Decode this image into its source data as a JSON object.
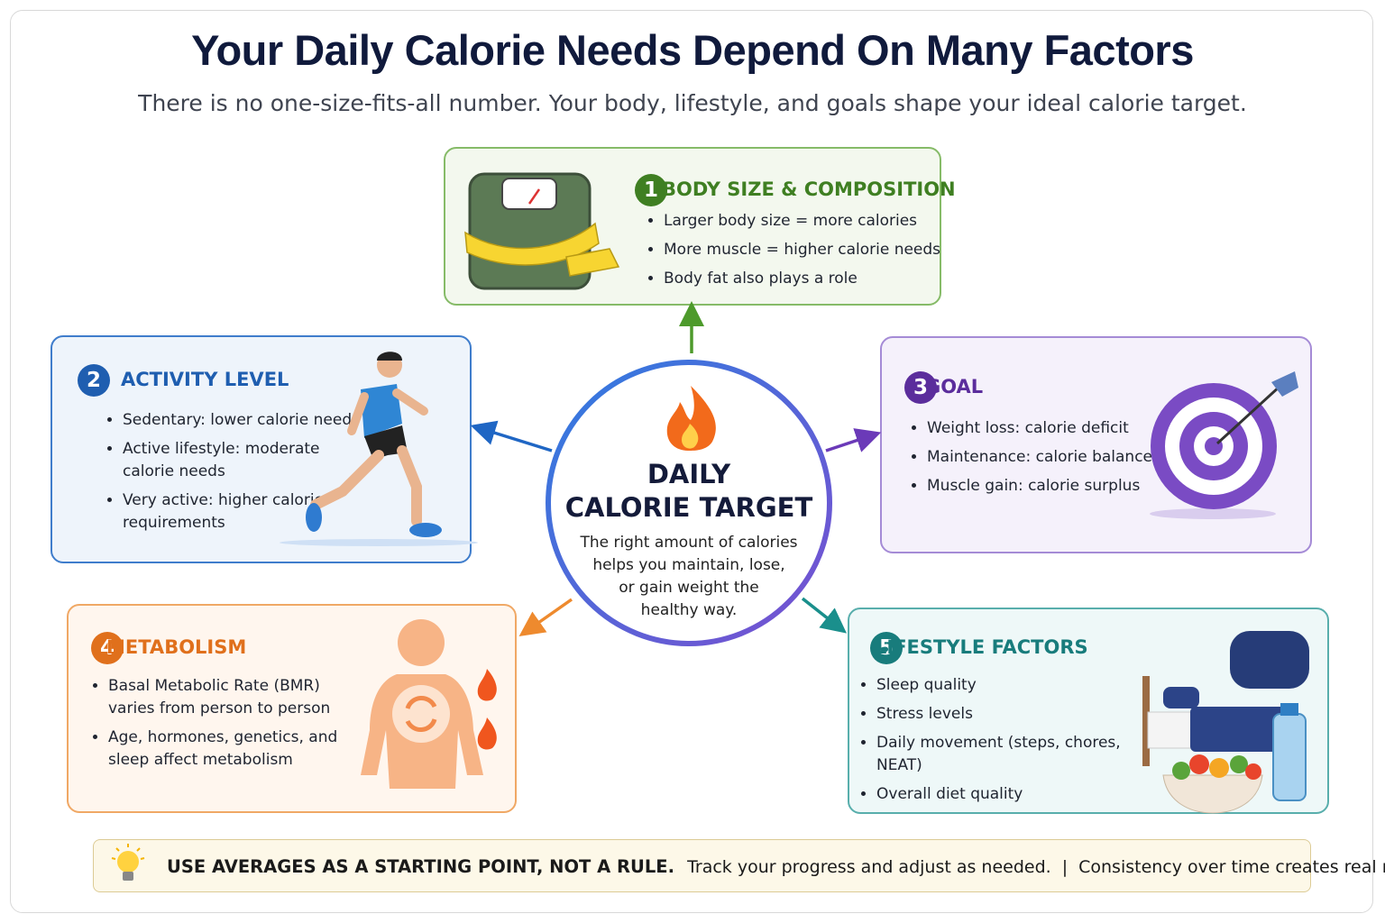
{
  "header": {
    "title": "Your Daily Calorie Needs Depend On Many Factors",
    "subtitle": "There is no one-size-fits-all number. Your body, lifestyle, and goals shape your ideal calorie target."
  },
  "center": {
    "title_lines": [
      "DAILY",
      "CALORIE TARGET"
    ],
    "text_lines": [
      "The right amount of calories",
      "helps you maintain, lose,",
      "or gain weight the",
      "healthy way."
    ]
  },
  "factors": [
    {
      "number": 1,
      "title": "BODY SIZE & COMPOSITION",
      "bullets": [
        "Larger body size = more calories",
        "More muscle = higher calorie needs",
        "Body fat also plays a role"
      ]
    },
    {
      "number": 2,
      "title": "ACTIVITY LEVEL",
      "bullets": [
        "Sedentary: lower calorie needs",
        "Active lifestyle: moderate calorie needs",
        "Very active: higher calorie requirements"
      ]
    },
    {
      "number": 3,
      "title": "GOAL",
      "bullets": [
        "Weight loss: calorie deficit",
        "Maintenance: calorie balance",
        "Muscle gain: calorie surplus"
      ]
    },
    {
      "number": 4,
      "title": "METABOLISM",
      "bullets": [
        "Basal Metabolic Rate (BMR) varies from person to person",
        "Age, hormones, genetics, and sleep affect metabolism"
      ]
    },
    {
      "number": 5,
      "title": "LIFESTYLE FACTORS",
      "bullets": [
        "Sleep quality",
        "Stress levels",
        "Daily movement (steps, chores, NEAT)",
        "Overall diet quality"
      ]
    }
  ],
  "footer": {
    "emphasis": "USE AVERAGES AS A STARTING POINT, NOT A RULE.",
    "text_1": "Track your progress and adjust as needed.",
    "separator": "|",
    "text_2": "Consistency over time creates real results."
  }
}
